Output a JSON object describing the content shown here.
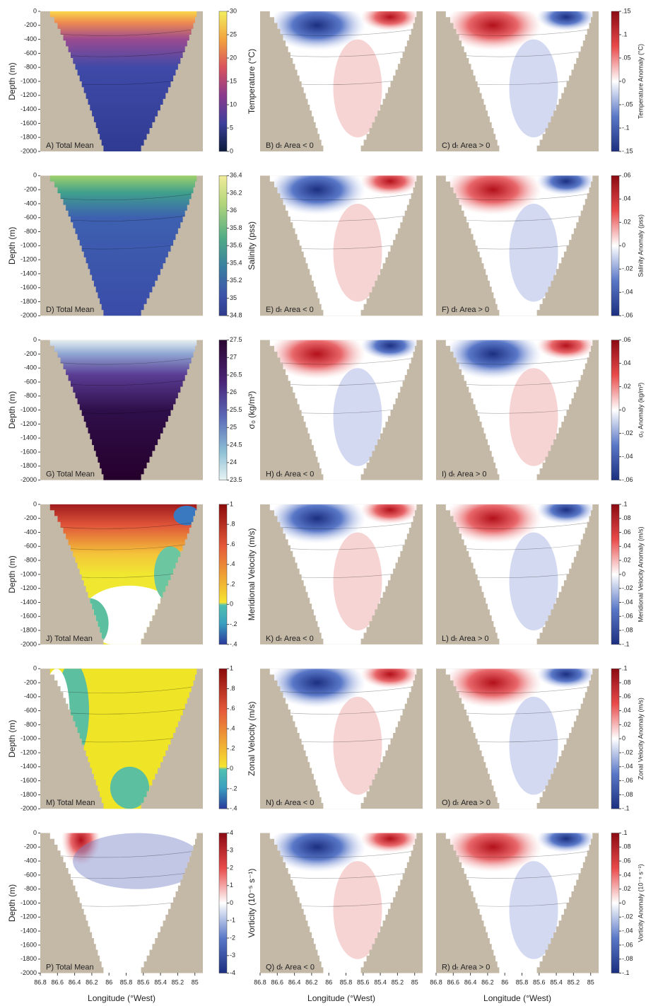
{
  "depth_axis": {
    "label": "Depth (m)",
    "ticks": [
      "0",
      "-200",
      "-400",
      "-600",
      "-800",
      "-1000",
      "-1200",
      "-1400",
      "-1600",
      "-1800",
      "-2000"
    ]
  },
  "longitude_axis": {
    "label": "Longitude (°West)",
    "ticks": [
      "86.8",
      "86.6",
      "86.4",
      "86.2",
      "86",
      "85.8",
      "85.6",
      "85.4",
      "85.2",
      "85"
    ]
  },
  "rows": [
    {
      "mean_panel": "A) Total Mean",
      "mean_colorbar": {
        "label": "Temperature (°C)",
        "ticks": [
          "30",
          "25",
          "20",
          "15",
          "10",
          "5",
          "0"
        ]
      },
      "anomaly_panels": [
        "B) dₜ Area < 0",
        "C) dₜ Area > 0"
      ],
      "anomaly_colorbar": {
        "label": "Temperature Anomaly (°C)",
        "ticks": [
          ".15",
          ".1",
          ".05",
          "0",
          "-.05",
          "-.1",
          "-.15"
        ]
      }
    },
    {
      "mean_panel": "D) Total Mean",
      "mean_colorbar": {
        "label": "Salinity (pss)",
        "ticks": [
          "36.4",
          "36.2",
          "36",
          "35.8",
          "35.6",
          "35.4",
          "35.2",
          "35",
          "34.8"
        ]
      },
      "anomaly_panels": [
        "E) dₜ Area < 0",
        "F) dₜ Area > 0"
      ],
      "anomaly_colorbar": {
        "label": "Salinity Anomaly (pss)",
        "ticks": [
          ".06",
          ".04",
          ".02",
          "0",
          "-.02",
          "-.04",
          "-.06"
        ]
      }
    },
    {
      "mean_panel": "G) Total Mean",
      "mean_colorbar": {
        "label": "σ₀ (kg/m³)",
        "ticks": [
          "27.5",
          "27",
          "26.5",
          "26",
          "25.5",
          "25",
          "24.5",
          "24",
          "23.5"
        ]
      },
      "anomaly_panels": [
        "H) dₜ Area < 0",
        "I) dₜ Area > 0"
      ],
      "anomaly_colorbar": {
        "label": "σ₀ Anomaly (kg/m³)",
        "ticks": [
          ".06",
          ".04",
          ".02",
          "0",
          "-.02",
          "-.04",
          "-.06"
        ]
      }
    },
    {
      "mean_panel": "J) Total Mean",
      "mean_colorbar": {
        "label": "Meridional Velocity (m/s)",
        "ticks": [
          "1",
          ".8",
          ".6",
          ".4",
          ".2",
          "0",
          "-.2",
          "-.4"
        ]
      },
      "anomaly_panels": [
        "K) dₜ Area < 0",
        "L) dₜ Area > 0"
      ],
      "anomaly_colorbar": {
        "label": "Meridional Velocity Anomaly (m/s)",
        "ticks": [
          ".1",
          ".08",
          ".06",
          ".04",
          ".02",
          "0",
          "-.02",
          "-.04",
          "-.06",
          "-.08",
          "-.1"
        ]
      }
    },
    {
      "mean_panel": "M) Total Mean",
      "mean_colorbar": {
        "label": "Zonal Velocity (m/s)",
        "ticks": [
          "1",
          ".8",
          ".6",
          ".4",
          ".2",
          "0",
          "-.2",
          "-.4"
        ]
      },
      "anomaly_panels": [
        "N) dₜ Area < 0",
        "O) dₜ Area > 0"
      ],
      "anomaly_colorbar": {
        "label": "Zonal Velocity Anomaly (m/s)",
        "ticks": [
          ".1",
          ".08",
          ".06",
          ".04",
          ".02",
          "0",
          "-.02",
          "-.04",
          "-.06",
          "-.08",
          "-.1"
        ]
      }
    },
    {
      "mean_panel": "P) Total Mean",
      "mean_colorbar": {
        "label": "Vorticity (10⁻⁵ s⁻¹)",
        "ticks": [
          "4",
          "3",
          "2",
          "1",
          "0",
          "-1",
          "-2",
          "-3",
          "-4"
        ]
      },
      "anomaly_panels": [
        "Q) dₜ Area < 0",
        "R) dₜ Area > 0"
      ],
      "anomaly_colorbar": {
        "label": "Vorticity Anomaly (10⁻⁵ s⁻¹)",
        "ticks": [
          ".1",
          ".08",
          ".06",
          ".04",
          ".02",
          "0",
          "-.02",
          "-.04",
          "-.06",
          "-.08",
          "-.1"
        ]
      }
    }
  ]
}
